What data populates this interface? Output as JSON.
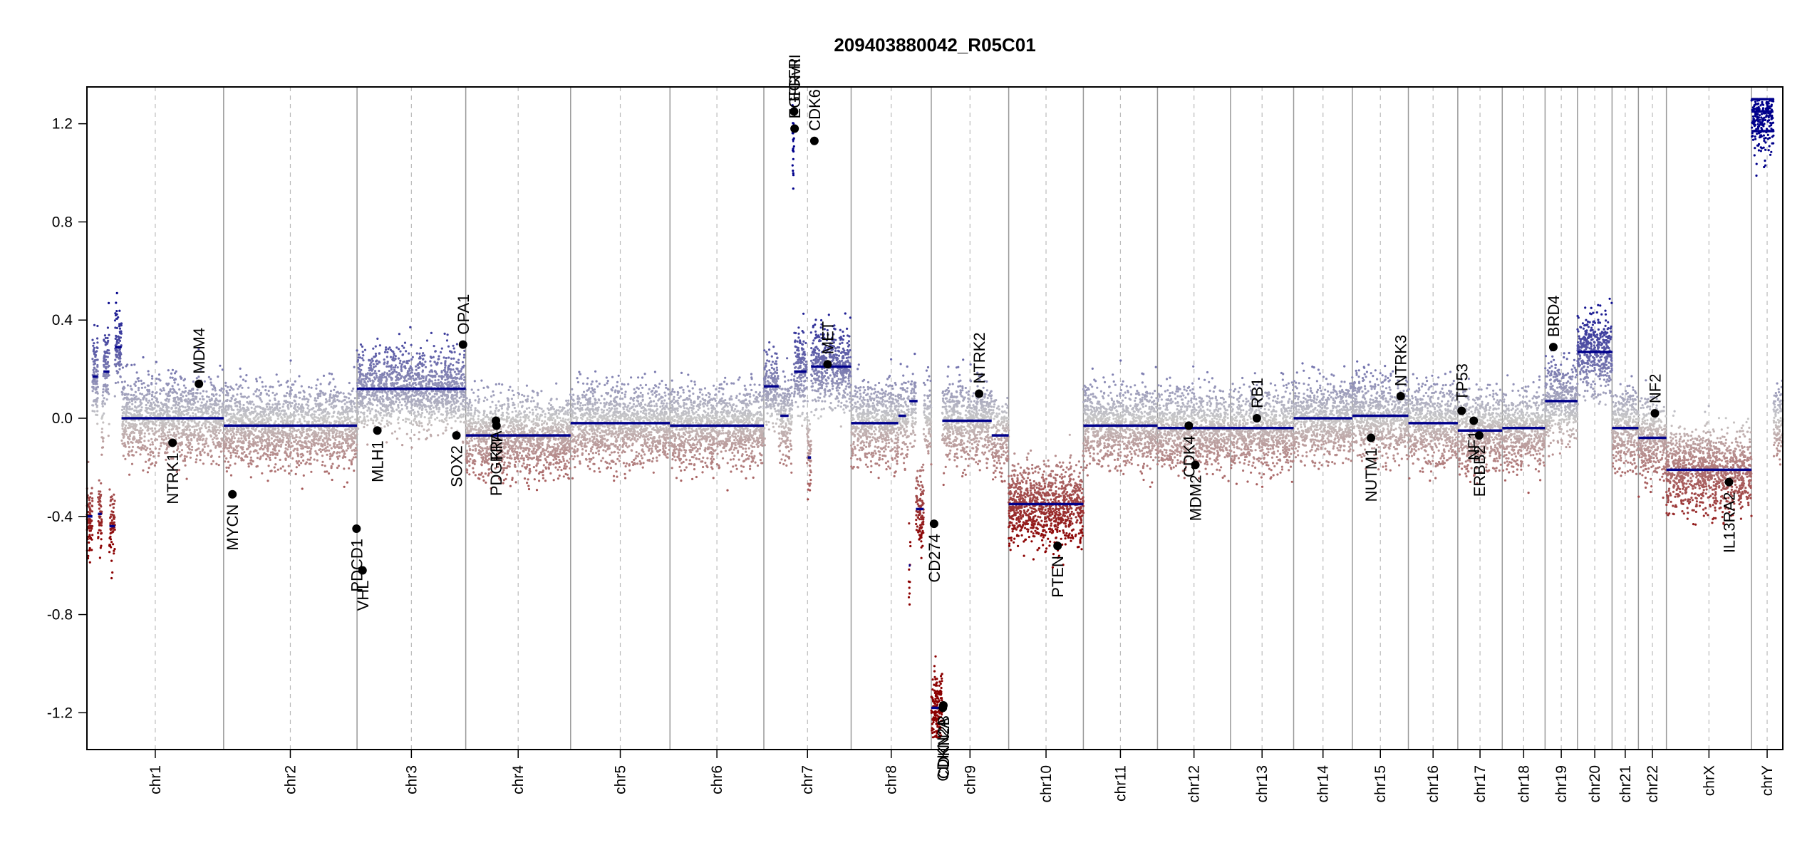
{
  "chart_data": {
    "type": "scatter",
    "title": "209403880042_R05C01",
    "ylim": [
      -1.35,
      1.35
    ],
    "y_ticks": [
      "1.2",
      "0.8",
      "0.4",
      "0.0",
      "-0.4",
      "-0.8",
      "-1.2"
    ],
    "y_tick_values": [
      1.2,
      0.8,
      0.4,
      0.0,
      -0.4,
      -0.8,
      -1.2
    ],
    "grid": "vertical chromosome separators",
    "colors": {
      "gain": "#00008b",
      "loss": "#8b0000",
      "neutral": "#c8c8c8",
      "segment": "#00008b",
      "separator": "#999999"
    },
    "chromosomes": [
      {
        "name": "chr1",
        "len": 249
      },
      {
        "name": "chr2",
        "len": 243
      },
      {
        "name": "chr3",
        "len": 198
      },
      {
        "name": "chr4",
        "len": 191
      },
      {
        "name": "chr5",
        "len": 181
      },
      {
        "name": "chr6",
        "len": 171
      },
      {
        "name": "chr7",
        "len": 159
      },
      {
        "name": "chr8",
        "len": 146
      },
      {
        "name": "chr9",
        "len": 141
      },
      {
        "name": "chr10",
        "len": 136
      },
      {
        "name": "chr11",
        "len": 135
      },
      {
        "name": "chr12",
        "len": 133
      },
      {
        "name": "chr13",
        "len": 115
      },
      {
        "name": "chr14",
        "len": 107
      },
      {
        "name": "chr15",
        "len": 102
      },
      {
        "name": "chr16",
        "len": 90
      },
      {
        "name": "chr17",
        "len": 81
      },
      {
        "name": "chr18",
        "len": 78
      },
      {
        "name": "chr19",
        "len": 59
      },
      {
        "name": "chr20",
        "len": 63
      },
      {
        "name": "chr21",
        "len": 48
      },
      {
        "name": "chr22",
        "len": 51
      },
      {
        "name": "chrX",
        "len": 155
      },
      {
        "name": "chrY",
        "len": 57
      }
    ],
    "segments": [
      {
        "chr": "chr1",
        "start": 0,
        "end": 10,
        "value": -0.4
      },
      {
        "chr": "chr1",
        "start": 10,
        "end": 20,
        "value": 0.17
      },
      {
        "chr": "chr1",
        "start": 20,
        "end": 27,
        "value": -0.39
      },
      {
        "chr": "chr1",
        "start": 30,
        "end": 41,
        "value": 0.19
      },
      {
        "chr": "chr1",
        "start": 41,
        "end": 51,
        "value": -0.44
      },
      {
        "chr": "chr1",
        "start": 51,
        "end": 63,
        "value": 0.29
      },
      {
        "chr": "chr1",
        "start": 63,
        "end": 249,
        "value": 0.0
      },
      {
        "chr": "chr2",
        "start": 0,
        "end": 243,
        "value": -0.03
      },
      {
        "chr": "chr3",
        "start": 0,
        "end": 198,
        "value": 0.12
      },
      {
        "chr": "chr4",
        "start": 0,
        "end": 191,
        "value": -0.07
      },
      {
        "chr": "chr5",
        "start": 0,
        "end": 181,
        "value": -0.02
      },
      {
        "chr": "chr6",
        "start": 0,
        "end": 171,
        "value": -0.03
      },
      {
        "chr": "chr7",
        "start": 0,
        "end": 27,
        "value": 0.13
      },
      {
        "chr": "chr7",
        "start": 30,
        "end": 45,
        "value": 0.01
      },
      {
        "chr": "chr7",
        "start": 52,
        "end": 55,
        "value": 1.13
      },
      {
        "chr": "chr7",
        "start": 55,
        "end": 78,
        "value": 0.19
      },
      {
        "chr": "chr7",
        "start": 80,
        "end": 86,
        "value": -0.16
      },
      {
        "chr": "chr7",
        "start": 86,
        "end": 159,
        "value": 0.21
      },
      {
        "chr": "chr8",
        "start": 0,
        "end": 86,
        "value": -0.02
      },
      {
        "chr": "chr8",
        "start": 86,
        "end": 100,
        "value": 0.01
      },
      {
        "chr": "chr8",
        "start": 106,
        "end": 121,
        "value": 0.07
      },
      {
        "chr": "chr8",
        "start": 105,
        "end": 108,
        "value": -0.6
      },
      {
        "chr": "chr8",
        "start": 118,
        "end": 132,
        "value": -0.37
      },
      {
        "chr": "chr9",
        "start": 0,
        "end": 20,
        "value": -1.18
      },
      {
        "chr": "chr9",
        "start": 20,
        "end": 110,
        "value": -0.01
      },
      {
        "chr": "chr9",
        "start": 110,
        "end": 141,
        "value": -0.07
      },
      {
        "chr": "chr10",
        "start": 0,
        "end": 136,
        "value": -0.35
      },
      {
        "chr": "chr11",
        "start": 0,
        "end": 135,
        "value": -0.03
      },
      {
        "chr": "chr12",
        "start": 0,
        "end": 133,
        "value": -0.04
      },
      {
        "chr": "chr13",
        "start": 0,
        "end": 115,
        "value": -0.04
      },
      {
        "chr": "chr14",
        "start": 0,
        "end": 107,
        "value": 0.0
      },
      {
        "chr": "chr15",
        "start": 0,
        "end": 102,
        "value": 0.01
      },
      {
        "chr": "chr16",
        "start": 0,
        "end": 90,
        "value": -0.02
      },
      {
        "chr": "chr17",
        "start": 0,
        "end": 81,
        "value": -0.05
      },
      {
        "chr": "chr18",
        "start": 0,
        "end": 78,
        "value": -0.04
      },
      {
        "chr": "chr19",
        "start": 0,
        "end": 59,
        "value": 0.07
      },
      {
        "chr": "chr20",
        "start": 0,
        "end": 63,
        "value": 0.27
      },
      {
        "chr": "chr21",
        "start": 0,
        "end": 48,
        "value": -0.04
      },
      {
        "chr": "chr22",
        "start": 0,
        "end": 51,
        "value": -0.08
      },
      {
        "chr": "chrX",
        "start": 0,
        "end": 155,
        "value": -0.21
      },
      {
        "chr": "chrY",
        "start": 0,
        "end": 40,
        "value": 1.17
      },
      {
        "chr": "chrY",
        "start": 0,
        "end": 40,
        "value": 1.25
      }
    ],
    "genes": [
      {
        "label": "NTRK1",
        "chr": "chr1",
        "pos": 156,
        "value": -0.1
      },
      {
        "label": "MDM4",
        "chr": "chr1",
        "pos": 204,
        "value": 0.14
      },
      {
        "label": "MYCN",
        "chr": "chr2",
        "pos": 16,
        "value": -0.31
      },
      {
        "label": "PDCD1",
        "chr": "chr2",
        "pos": 242,
        "value": -0.45
      },
      {
        "label": "VHL",
        "chr": "chr3",
        "pos": 10,
        "value": -0.62
      },
      {
        "label": "MLH1",
        "chr": "chr3",
        "pos": 37,
        "value": -0.05
      },
      {
        "label": "SOX2",
        "chr": "chr3",
        "pos": 181,
        "value": -0.07
      },
      {
        "label": "OPA1",
        "chr": "chr3",
        "pos": 193,
        "value": 0.3
      },
      {
        "label": "PDGFRA",
        "chr": "chr4",
        "pos": 55,
        "value": -0.01
      },
      {
        "label": "KIT",
        "chr": "chr4",
        "pos": 56,
        "value": -0.03
      },
      {
        "label": "CDK6",
        "chr": "chr7",
        "pos": 92,
        "value": 1.13
      },
      {
        "label": "EGFR",
        "chr": "chr7",
        "pos": 55,
        "value": 1.25
      },
      {
        "label": "EGFRvIII",
        "chr": "chr7",
        "pos": 56,
        "value": 1.18
      },
      {
        "label": "MET",
        "chr": "chr7",
        "pos": 116,
        "value": 0.22
      },
      {
        "label": "CD274",
        "chr": "chr9",
        "pos": 5,
        "value": -0.43
      },
      {
        "label": "CDKN2A",
        "chr": "chr9",
        "pos": 21,
        "value": -1.18
      },
      {
        "label": "CDKN2B",
        "chr": "chr9",
        "pos": 22,
        "value": -1.17
      },
      {
        "label": "NTRK2",
        "chr": "chr9",
        "pos": 87,
        "value": 0.1
      },
      {
        "label": "PTEN",
        "chr": "chr10",
        "pos": 89,
        "value": -0.52
      },
      {
        "label": "CDK4",
        "chr": "chr12",
        "pos": 57,
        "value": -0.03
      },
      {
        "label": "MDM2",
        "chr": "chr12",
        "pos": 69,
        "value": -0.19
      },
      {
        "label": "RB1",
        "chr": "chr13",
        "pos": 48,
        "value": 0.0
      },
      {
        "label": "NUTM1",
        "chr": "chr15",
        "pos": 34,
        "value": -0.08
      },
      {
        "label": "NTRK3",
        "chr": "chr15",
        "pos": 88,
        "value": 0.09
      },
      {
        "label": "TP53",
        "chr": "chr17",
        "pos": 7,
        "value": 0.03
      },
      {
        "label": "NF1",
        "chr": "chr17",
        "pos": 29,
        "value": -0.01
      },
      {
        "label": "ERBB2",
        "chr": "chr17",
        "pos": 39,
        "value": -0.07
      },
      {
        "label": "BRD4",
        "chr": "chr19",
        "pos": 15,
        "value": 0.29
      },
      {
        "label": "NF2",
        "chr": "chr22",
        "pos": 30,
        "value": 0.02
      },
      {
        "label": "IL13RA2",
        "chr": "chrX",
        "pos": 114,
        "value": -0.26
      }
    ]
  }
}
